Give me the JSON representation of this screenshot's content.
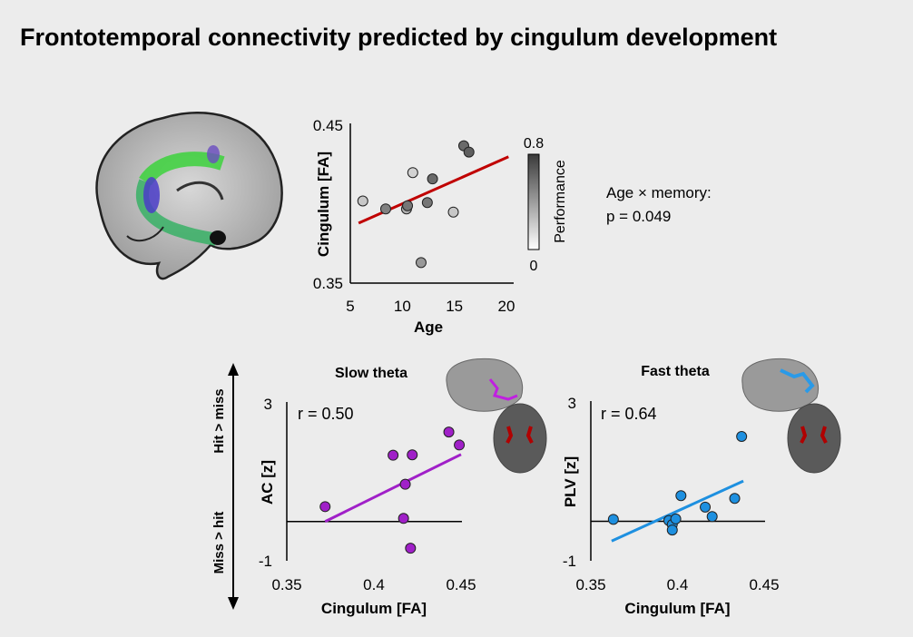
{
  "title": "Frontotemporal connectivity predicted by cingulum development",
  "annotation": {
    "line1": "Age × memory:",
    "line2": "p = 0.049"
  },
  "direction_labels": {
    "up": "Hit > miss",
    "down": "Miss > hit"
  },
  "colors": {
    "background": "#ececec",
    "regression_top": "#c00000",
    "slow_theta": "#a020c8",
    "fast_theta": "#1e90e0"
  },
  "chart_data": [
    {
      "type": "scatter",
      "xlabel": "Age",
      "ylabel": "Cingulum [FA]",
      "xlim": [
        5,
        20
      ],
      "ylim": [
        0.35,
        0.45
      ],
      "xticks": [
        "5",
        "10",
        "15",
        "20"
      ],
      "yticks": [
        "0.35",
        "0.45"
      ],
      "colorbar": {
        "label": "Performance",
        "min": "0",
        "max": "0.8",
        "colormap": "white-to-dark-gray"
      },
      "points": [
        {
          "x": 6.2,
          "y": 0.402,
          "performance": 0.2
        },
        {
          "x": 8.4,
          "y": 0.397,
          "performance": 0.5
        },
        {
          "x": 10.4,
          "y": 0.397,
          "performance": 0.3
        },
        {
          "x": 10.5,
          "y": 0.399,
          "performance": 0.55
        },
        {
          "x": 11.0,
          "y": 0.42,
          "performance": 0.15
        },
        {
          "x": 11.8,
          "y": 0.363,
          "performance": 0.4
        },
        {
          "x": 12.4,
          "y": 0.401,
          "performance": 0.55
        },
        {
          "x": 12.9,
          "y": 0.416,
          "performance": 0.6
        },
        {
          "x": 14.9,
          "y": 0.395,
          "performance": 0.2
        },
        {
          "x": 15.9,
          "y": 0.437,
          "performance": 0.6
        },
        {
          "x": 16.4,
          "y": 0.433,
          "performance": 0.65
        }
      ],
      "fit_line": [
        [
          5.8,
          0.388
        ],
        [
          20.2,
          0.43
        ]
      ]
    },
    {
      "type": "scatter",
      "title": "Slow theta",
      "annotation": "r = 0.50",
      "xlabel": "Cingulum [FA]",
      "ylabel": "AC [z]",
      "xlim": [
        0.35,
        0.45
      ],
      "ylim": [
        -1,
        3
      ],
      "xticks": [
        "0.35",
        "0.4",
        "0.45"
      ],
      "yticks": [
        "-1",
        "3"
      ],
      "points": [
        {
          "x": 0.372,
          "y": 0.38
        },
        {
          "x": 0.411,
          "y": 1.69
        },
        {
          "x": 0.422,
          "y": 1.7
        },
        {
          "x": 0.418,
          "y": 0.95
        },
        {
          "x": 0.417,
          "y": 0.08
        },
        {
          "x": 0.421,
          "y": -0.68
        },
        {
          "x": 0.443,
          "y": 2.28
        },
        {
          "x": 0.449,
          "y": 1.95
        }
      ],
      "fit_line": [
        [
          0.372,
          0.0
        ],
        [
          0.45,
          1.71
        ]
      ]
    },
    {
      "type": "scatter",
      "title": "Fast theta",
      "annotation": "r = 0.64",
      "xlabel": "Cingulum [FA]",
      "ylabel": "PLV [z]",
      "xlim": [
        0.35,
        0.45
      ],
      "ylim": [
        -1,
        3
      ],
      "xticks": [
        "0.35",
        "0.4",
        "0.45"
      ],
      "yticks": [
        "-1",
        "3"
      ],
      "points": [
        {
          "x": 0.363,
          "y": 0.05
        },
        {
          "x": 0.395,
          "y": 0.02
        },
        {
          "x": 0.397,
          "y": -0.08
        },
        {
          "x": 0.397,
          "y": -0.22
        },
        {
          "x": 0.399,
          "y": 0.06
        },
        {
          "x": 0.402,
          "y": 0.65
        },
        {
          "x": 0.416,
          "y": 0.36
        },
        {
          "x": 0.42,
          "y": 0.12
        },
        {
          "x": 0.433,
          "y": 0.58
        },
        {
          "x": 0.437,
          "y": 2.15
        }
      ],
      "fit_line": [
        [
          0.362,
          -0.5
        ],
        [
          0.438,
          1.02
        ]
      ]
    }
  ]
}
